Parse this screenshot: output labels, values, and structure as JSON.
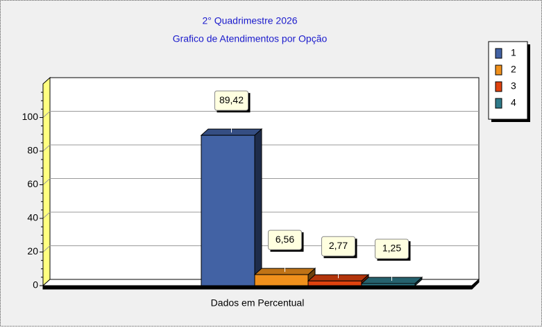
{
  "chart_data": {
    "type": "bar3d",
    "title": "2° Quadrimestre 2026",
    "subtitle": "Grafico de Atendimentos por Opção",
    "categories": [
      "Dados em Percentual"
    ],
    "series": [
      {
        "name": "1",
        "color": "#4262a4",
        "values": [
          89.42
        ],
        "value_labels": [
          "89,42"
        ]
      },
      {
        "name": "2",
        "color": "#f0901c",
        "values": [
          6.56
        ],
        "value_labels": [
          "6,56"
        ]
      },
      {
        "name": "3",
        "color": "#e0420e",
        "values": [
          2.77
        ],
        "value_labels": [
          "2,77"
        ]
      },
      {
        "name": "4",
        "color": "#2f7a8a",
        "values": [
          1.25
        ],
        "value_labels": [
          "1,25"
        ]
      }
    ],
    "ylim": [
      0,
      120
    ],
    "yticks": [
      0,
      20,
      40,
      60,
      80,
      100
    ],
    "grid": true,
    "legend": "right"
  }
}
